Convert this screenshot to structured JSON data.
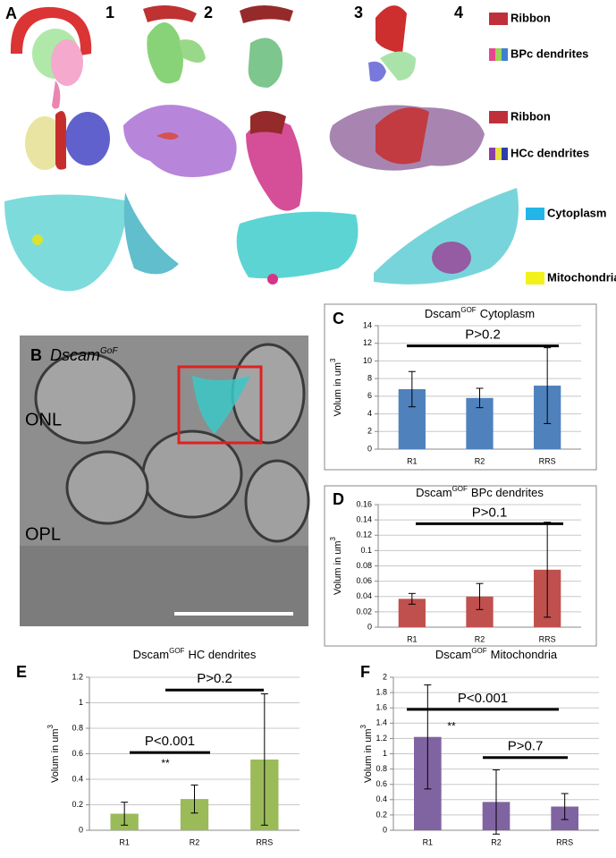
{
  "panel_a": {
    "label": "A",
    "columns": [
      "1",
      "2",
      "3",
      "4"
    ],
    "legend": [
      {
        "text": "Ribbon",
        "colors": [
          "#c0303a"
        ]
      },
      {
        "text": "BPc dendrites",
        "colors": [
          "#e8458f",
          "#9bd35a",
          "#3f7fd0"
        ]
      },
      {
        "text": "Ribbon",
        "colors": [
          "#c0303a"
        ]
      },
      {
        "text": "HCc dendrites",
        "colors": [
          "#8a3fa8",
          "#e8e040",
          "#2d3fa8"
        ]
      },
      {
        "text": "Cytoplasm",
        "colors": [
          "#22b6e8"
        ]
      },
      {
        "text": "Mitochondria",
        "colors": [
          "#f2f21a"
        ]
      }
    ]
  },
  "panel_b": {
    "label": "B",
    "title": "Dscam",
    "title_sup": "GoF",
    "labels": [
      "ONL",
      "OPL"
    ]
  },
  "chart_data": [
    {
      "type": "bar",
      "panel": "C",
      "title": [
        "Dscam",
        "GOF",
        "Cytoplasm"
      ],
      "y_label": [
        "Volum in  um",
        "3"
      ],
      "categories": [
        "R1",
        "R2",
        "RRS"
      ],
      "values": [
        6.8,
        5.8,
        7.2
      ],
      "errors": [
        2.0,
        1.1,
        4.3
      ],
      "color": "#4f81bd",
      "ylim": [
        0,
        14
      ],
      "yticks": [
        0,
        2,
        4,
        6,
        8,
        10,
        12,
        14
      ],
      "grid": true,
      "annotations": [
        {
          "text": "P>0.2",
          "y": 11.7
        }
      ]
    },
    {
      "type": "bar",
      "panel": "D",
      "title": [
        "Dscam",
        "GOF",
        "BPc dendrites"
      ],
      "y_label": [
        "Volum in  um",
        "3"
      ],
      "categories": [
        "R1",
        "R2",
        "RRS"
      ],
      "values": [
        0.037,
        0.04,
        0.075
      ],
      "errors": [
        0.007,
        0.017,
        0.062
      ],
      "color": "#c0504d",
      "ylim": [
        0,
        0.16
      ],
      "yticks": [
        0,
        0.02,
        0.04,
        0.06,
        0.08,
        0.1,
        0.12,
        0.14,
        0.16
      ],
      "grid": true,
      "annotations": [
        {
          "text": "P>0.1",
          "y": 0.135
        }
      ]
    },
    {
      "type": "bar",
      "panel": "E",
      "title": [
        "Dscam",
        "GOF",
        "HC dendrites"
      ],
      "y_label": [
        "Volum in  um",
        "3"
      ],
      "categories": [
        "R1",
        "R2",
        "RRS"
      ],
      "values": [
        0.13,
        0.245,
        0.555
      ],
      "errors": [
        0.09,
        0.11,
        0.515
      ],
      "color": "#9bbb59",
      "ylim": [
        0,
        1.2
      ],
      "yticks": [
        0,
        0.2,
        0.4,
        0.6,
        0.8,
        1,
        1.2
      ],
      "grid": true,
      "annotations": [
        {
          "text": "P<0.001",
          "y": 0.61
        },
        {
          "text": "**",
          "y": 0.52
        },
        {
          "text": "P>0.2",
          "y": 1.1
        }
      ]
    },
    {
      "type": "bar",
      "panel": "F",
      "title": [
        "Dscam",
        "GOF",
        "Mitochondria"
      ],
      "y_label": [
        "Volum in  um",
        "3"
      ],
      "categories": [
        "R1",
        "R2",
        "RRS"
      ],
      "values": [
        1.22,
        0.37,
        0.31
      ],
      "errors": [
        0.68,
        0.42,
        0.17
      ],
      "color": "#8064a2",
      "ylim": [
        0,
        2
      ],
      "yticks": [
        0,
        0.2,
        0.4,
        0.6,
        0.8,
        1,
        1.2,
        1.4,
        1.6,
        1.8,
        2
      ],
      "grid": true,
      "annotations": [
        {
          "text": "P<0.001",
          "y": 1.58
        },
        {
          "text": "**",
          "y": 1.35
        },
        {
          "text": "P>0.7",
          "y": 0.95
        }
      ]
    }
  ]
}
